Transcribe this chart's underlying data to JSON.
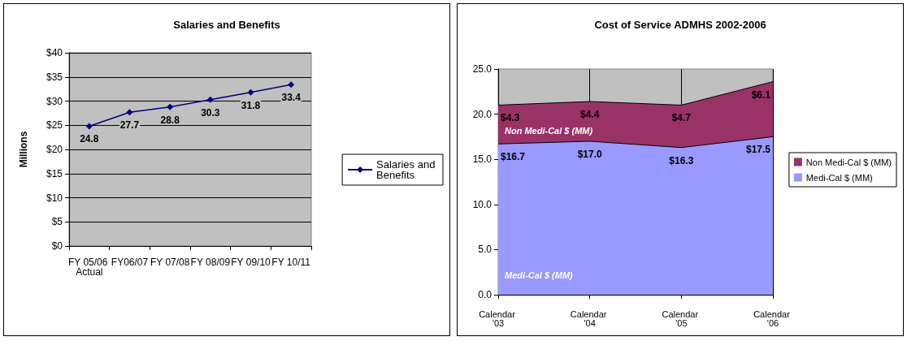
{
  "chart_data": [
    {
      "type": "line",
      "title": "Salaries and Benefits",
      "ylabel": "Millions",
      "categories": [
        "FY 05/06 Actual",
        "FY06/07",
        "FY 07/08",
        "FY 08/09",
        "FY 09/10",
        "FY 10/11"
      ],
      "series": [
        {
          "name": "Salaries and Benefits",
          "color": "#000080",
          "values": [
            24.8,
            27.7,
            28.8,
            30.3,
            31.8,
            33.4
          ]
        }
      ],
      "ylim": [
        0,
        40
      ],
      "yticks": [
        {
          "value": 0,
          "label": "$0"
        },
        {
          "value": 5,
          "label": "$5"
        },
        {
          "value": 10,
          "label": "$10"
        },
        {
          "value": 15,
          "label": "$15"
        },
        {
          "value": 20,
          "label": "$20"
        },
        {
          "value": 25,
          "label": "$25"
        },
        {
          "value": 30,
          "label": "$30"
        },
        {
          "value": 35,
          "label": "$35"
        },
        {
          "value": 40,
          "label": "$40"
        }
      ],
      "grid": "y",
      "legend": "right",
      "marker": "diamond",
      "data_labels": true
    },
    {
      "type": "area",
      "title": "Cost of Service ADMHS 2002-2006",
      "stacked": true,
      "categories": [
        "Calendar '03",
        "Calendar '04",
        "Calendar '05",
        "Calendar '06"
      ],
      "series": [
        {
          "name": "Medi-Cal $ (MM)",
          "color": "#9999ff",
          "values": [
            16.7,
            17.0,
            16.3,
            17.5
          ],
          "value_labels": [
            "$16.7",
            "$17.0",
            "$16.3",
            "$17.5"
          ]
        },
        {
          "name": "Non Medi-Cal $ (MM)",
          "color": "#993366",
          "values": [
            4.3,
            4.4,
            4.7,
            6.1
          ],
          "value_labels": [
            "$4.3",
            "$4.4",
            "$4.7",
            "$6.1"
          ]
        }
      ],
      "ylim": [
        0,
        25
      ],
      "yticks": [
        {
          "value": 0,
          "label": "0.0"
        },
        {
          "value": 5,
          "label": "5.0"
        },
        {
          "value": 10,
          "label": "10.0"
        },
        {
          "value": 15,
          "label": "15.0"
        },
        {
          "value": 20,
          "label": "20.0"
        },
        {
          "value": 25,
          "label": "25.0"
        }
      ],
      "grid": "x",
      "legend": "right",
      "marker": "none",
      "annotations": [
        "Non Medi-Cal $ (MM)",
        "Medi-Cal $ (MM)"
      ]
    }
  ]
}
